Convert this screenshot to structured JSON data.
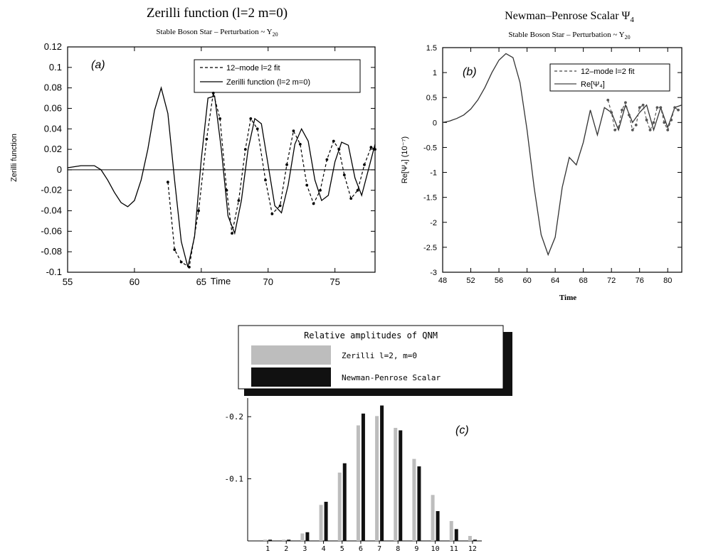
{
  "chart_data": [
    {
      "id": "a",
      "type": "line",
      "panel_label": "(a)",
      "title": "Zerilli function (l=2 m=0)",
      "subtitle": "Stable Boson Star  –  Perturbation ~ Y",
      "subtitle_sub": "20",
      "xlabel": "Time",
      "ylabel": "Zerilli function",
      "xlim": [
        55,
        78
      ],
      "ylim": [
        -0.1,
        0.12
      ],
      "xticks": [
        55,
        60,
        65,
        70,
        75
      ],
      "yticks": [
        -0.1,
        -0.08,
        -0.06,
        -0.04,
        -0.02,
        0,
        0.02,
        0.04,
        0.06,
        0.08,
        0.1,
        0.12
      ],
      "ytick_labels": [
        "-0.1",
        "-0.08",
        "-0.06",
        "-0.04",
        "-0.02",
        "0",
        "0.02",
        "0.04",
        "0.06",
        "0.08",
        "0.1",
        "0.12"
      ],
      "zero_line": true,
      "legend_position": "top-right",
      "series": [
        {
          "name": "12–mode l=2 fit",
          "style": "dashed-markers",
          "x": [
            62.5,
            63.0,
            63.5,
            64.1,
            64.8,
            65.4,
            65.9,
            66.4,
            66.9,
            67.3,
            67.8,
            68.3,
            68.7,
            69.2,
            69.8,
            70.3,
            70.9,
            71.4,
            71.9,
            72.4,
            72.9,
            73.4,
            73.9,
            74.4,
            74.9,
            75.3,
            75.7,
            76.2,
            76.7,
            77.2,
            77.7,
            78.0
          ],
          "y": [
            -0.012,
            -0.078,
            -0.09,
            -0.095,
            -0.04,
            0.03,
            0.075,
            0.05,
            -0.02,
            -0.062,
            -0.03,
            0.02,
            0.05,
            0.04,
            -0.01,
            -0.043,
            -0.035,
            0.005,
            0.038,
            0.025,
            -0.015,
            -0.033,
            -0.02,
            0.01,
            0.028,
            0.02,
            -0.005,
            -0.028,
            -0.02,
            0.005,
            0.022,
            0.02
          ]
        },
        {
          "name": "Zerilli function (l=2 m=0)",
          "style": "solid",
          "x": [
            55.0,
            56.0,
            57.0,
            57.5,
            58.0,
            58.5,
            59.0,
            59.5,
            60.0,
            60.5,
            61.0,
            61.5,
            62.0,
            62.5,
            63.0,
            63.5,
            64.0,
            64.5,
            65.0,
            65.5,
            66.0,
            66.5,
            67.0,
            67.5,
            68.0,
            68.5,
            69.0,
            69.5,
            70.0,
            70.5,
            71.0,
            71.5,
            72.0,
            72.5,
            73.0,
            73.5,
            74.0,
            74.5,
            75.0,
            75.5,
            76.0,
            76.5,
            77.0,
            77.5,
            78.0
          ],
          "y": [
            0.002,
            0.004,
            0.004,
            0.0,
            -0.01,
            -0.022,
            -0.032,
            -0.036,
            -0.03,
            -0.01,
            0.02,
            0.058,
            0.08,
            0.055,
            -0.01,
            -0.07,
            -0.095,
            -0.065,
            0.01,
            0.07,
            0.072,
            0.02,
            -0.045,
            -0.062,
            -0.03,
            0.02,
            0.05,
            0.045,
            0.005,
            -0.035,
            -0.042,
            -0.015,
            0.025,
            0.04,
            0.028,
            -0.01,
            -0.03,
            -0.025,
            0.008,
            0.027,
            0.024,
            -0.008,
            -0.025,
            0.0,
            0.025
          ]
        }
      ]
    },
    {
      "id": "b",
      "type": "line",
      "panel_label": "(b)",
      "title": "Newman–Penrose Scalar Ψ",
      "title_sub": "4",
      "subtitle": "Stable Boson Star  –  Perturbation ~ Y",
      "subtitle_sub": "20",
      "xlabel": "Time",
      "ylabel": "Re[Ψ₄] (10⁻⁷)",
      "xlim": [
        48,
        82
      ],
      "ylim": [
        -3,
        1.5
      ],
      "xticks": [
        48,
        52,
        56,
        60,
        64,
        68,
        72,
        76,
        80
      ],
      "yticks": [
        -3,
        -2.5,
        -2,
        -1.5,
        -1,
        -0.5,
        0,
        0.5,
        1,
        1.5
      ],
      "ytick_labels": [
        "-3",
        "-2.5",
        "-2",
        "-1.5",
        "-1",
        "-0.5",
        "0",
        "0.5",
        "1",
        "1.5"
      ],
      "legend_position": "top-right",
      "series": [
        {
          "name": "12–mode l=2 fit",
          "style": "dashed-markers",
          "x": [
            71.5,
            72.0,
            72.5,
            73.0,
            73.5,
            74.0,
            74.5,
            75.0,
            75.5,
            76.0,
            76.5,
            77.0,
            77.5,
            78.0,
            78.5,
            79.0,
            79.5,
            80.0,
            80.5,
            81.0,
            81.5
          ],
          "y": [
            0.45,
            0.2,
            -0.15,
            -0.1,
            0.25,
            0.4,
            0.15,
            -0.15,
            -0.05,
            0.3,
            0.35,
            0.05,
            -0.15,
            0.0,
            0.3,
            0.3,
            0.0,
            -0.15,
            0.05,
            0.3,
            0.25
          ]
        },
        {
          "name": "Re[Ψ₄]",
          "style": "solid",
          "x": [
            48,
            49,
            50,
            51,
            52,
            53,
            54,
            55,
            56,
            57,
            58,
            59,
            60,
            61,
            62,
            63,
            64,
            65,
            66,
            67,
            68,
            69,
            70,
            71,
            72,
            73,
            74,
            75,
            76,
            77,
            78,
            79,
            80,
            81,
            82
          ],
          "y": [
            0.0,
            0.03,
            0.08,
            0.15,
            0.27,
            0.45,
            0.7,
            1.0,
            1.25,
            1.38,
            1.3,
            0.8,
            -0.15,
            -1.3,
            -2.25,
            -2.65,
            -2.3,
            -1.3,
            -0.7,
            -0.85,
            -0.4,
            0.25,
            -0.25,
            0.3,
            0.2,
            -0.15,
            0.35,
            0.0,
            0.2,
            0.35,
            -0.15,
            0.3,
            -0.1,
            0.3,
            0.35
          ]
        }
      ]
    },
    {
      "id": "c",
      "type": "bar",
      "panel_label": "(c)",
      "legend_title": "Relative amplitudes of QNM",
      "categories": [
        "1",
        "2",
        "3",
        "4",
        "5",
        "6",
        "7",
        "8",
        "9",
        "10",
        "11",
        "12"
      ],
      "ylim": [
        0,
        -0.23
      ],
      "yticks": [
        -0.1,
        -0.2
      ],
      "ytick_labels": [
        "-0.1",
        "-0.2"
      ],
      "series": [
        {
          "name": "Zerilli l=2, m=0",
          "color": "#bdbdbd",
          "values": [
            -0.002,
            -0.002,
            -0.012,
            -0.058,
            -0.11,
            -0.186,
            -0.201,
            -0.182,
            -0.132,
            -0.074,
            -0.032,
            -0.008
          ]
        },
        {
          "name": "Newman-Penrose Scalar",
          "color": "#111111",
          "values": [
            -0.002,
            -0.002,
            -0.014,
            -0.063,
            -0.125,
            -0.205,
            -0.218,
            -0.178,
            -0.12,
            -0.048,
            -0.019,
            -0.002
          ]
        }
      ]
    }
  ]
}
